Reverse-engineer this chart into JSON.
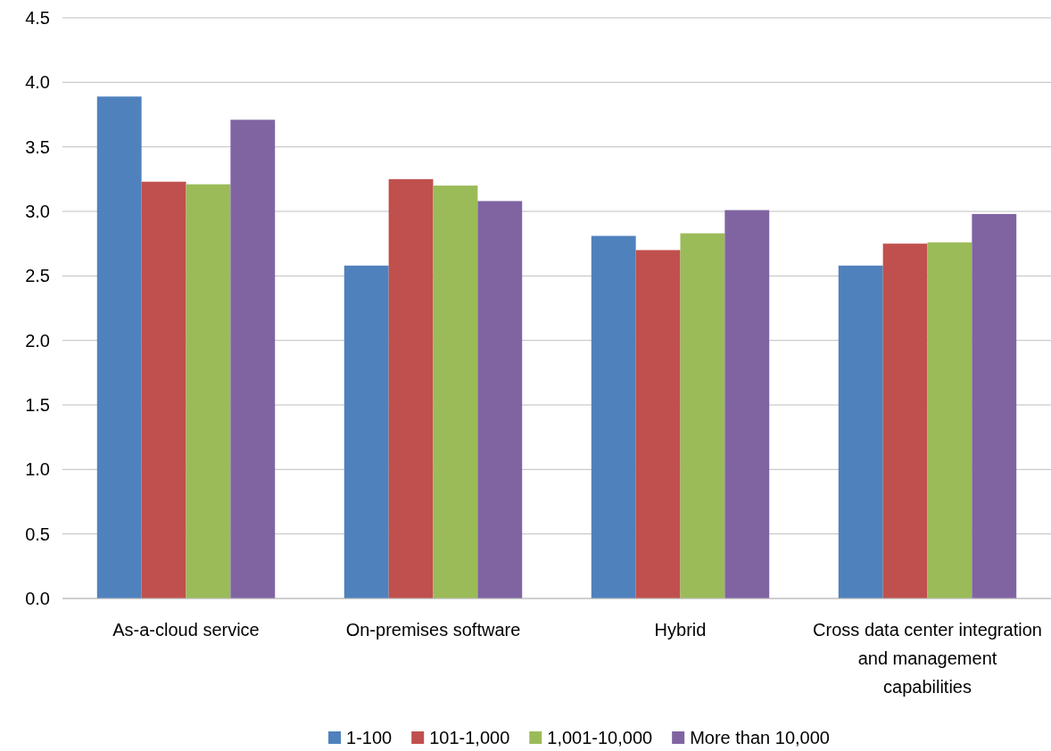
{
  "chart_data": {
    "type": "bar",
    "categories": [
      "As-a-cloud service",
      "On-premises software",
      "Hybrid",
      "Cross data center integration and management capabilities"
    ],
    "series": [
      {
        "name": "1-100",
        "color": "#4f81bd",
        "values": [
          3.89,
          2.58,
          2.81,
          2.58
        ]
      },
      {
        "name": "101-1,000",
        "color": "#c0504d",
        "values": [
          3.23,
          3.25,
          2.7,
          2.75
        ]
      },
      {
        "name": "1,001-10,000",
        "color": "#9bbb59",
        "values": [
          3.21,
          3.2,
          2.83,
          2.76
        ]
      },
      {
        "name": "More than 10,000",
        "color": "#8064a2",
        "values": [
          3.71,
          3.08,
          3.01,
          2.98
        ]
      }
    ],
    "ylim": [
      0,
      4.5
    ],
    "yticks": [
      {
        "value": 0,
        "label": "0.0"
      },
      {
        "value": 0.5,
        "label": "0.5"
      },
      {
        "value": 1,
        "label": "1.0"
      },
      {
        "value": 1.5,
        "label": "1.5"
      },
      {
        "value": 2,
        "label": "2.0"
      },
      {
        "value": 2.5,
        "label": "2.5"
      },
      {
        "value": 3,
        "label": "3.0"
      },
      {
        "value": 3.5,
        "label": "3.5"
      },
      {
        "value": 4,
        "label": "4.0"
      },
      {
        "value": 4.5,
        "label": "4.5"
      }
    ],
    "grid": "y",
    "legend": "bottom"
  }
}
